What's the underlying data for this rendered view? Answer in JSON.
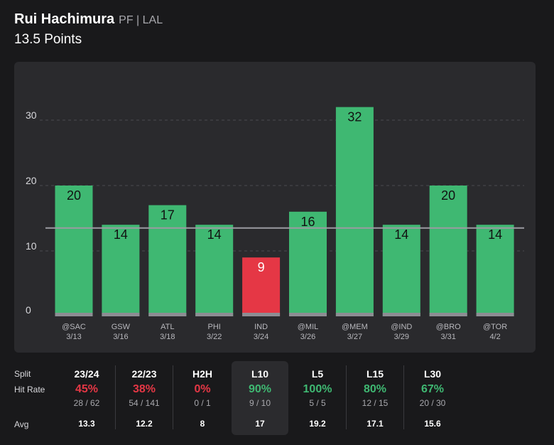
{
  "header": {
    "player_name": "Rui Hachimura",
    "player_meta": "PF | LAL",
    "prop": "13.5 Points"
  },
  "colors": {
    "hit": "#3fb872",
    "miss": "#e53745",
    "panel": "#2a2a2d",
    "line": "#9b9ba1"
  },
  "chart_data": {
    "type": "bar",
    "title": "13.5 Points",
    "ylim": [
      0,
      35
    ],
    "yticks": [
      0,
      10,
      20,
      30
    ],
    "grid": true,
    "threshold": 13.5,
    "categories": [
      "@SAC",
      "GSW",
      "ATL",
      "PHI",
      "IND",
      "@MIL",
      "@MEM",
      "@IND",
      "@BRO",
      "@TOR"
    ],
    "dates": [
      "3/13",
      "3/16",
      "3/18",
      "3/22",
      "3/24",
      "3/26",
      "3/27",
      "3/29",
      "3/31",
      "4/2"
    ],
    "values": [
      20,
      14,
      17,
      14,
      9,
      16,
      32,
      14,
      20,
      14
    ]
  },
  "stats": {
    "labels": {
      "split": "Split",
      "hit_rate": "Hit Rate",
      "avg": "Avg"
    },
    "columns": [
      {
        "name": "23/24",
        "rate": "45%",
        "frac": "28 / 62",
        "avg": "13.3",
        "status": "miss"
      },
      {
        "name": "22/23",
        "rate": "38%",
        "frac": "54 / 141",
        "avg": "12.2",
        "status": "miss"
      },
      {
        "name": "H2H",
        "rate": "0%",
        "frac": "0 / 1",
        "avg": "8",
        "status": "miss"
      },
      {
        "name": "L10",
        "rate": "90%",
        "frac": "9 / 10",
        "avg": "17",
        "status": "hit",
        "active": true
      },
      {
        "name": "L5",
        "rate": "100%",
        "frac": "5 / 5",
        "avg": "19.2",
        "status": "hit"
      },
      {
        "name": "L15",
        "rate": "80%",
        "frac": "12 / 15",
        "avg": "17.1",
        "status": "hit"
      },
      {
        "name": "L30",
        "rate": "67%",
        "frac": "20 / 30",
        "avg": "15.6",
        "status": "hit"
      }
    ]
  }
}
